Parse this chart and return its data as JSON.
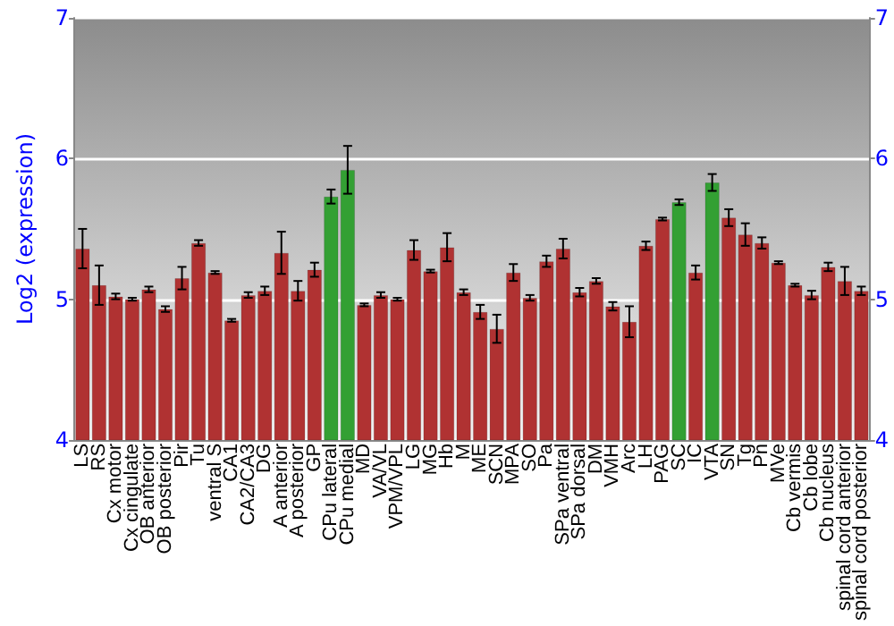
{
  "chart_data": {
    "type": "bar",
    "ylabel": "Log2 (expression)",
    "categories": [
      "LS",
      "RS",
      "Cx motor",
      "Cx cingulate",
      "OB anterior",
      "OB posterior",
      "Pir",
      "Tu",
      "ventral S",
      "CA1",
      "CA2/CA3",
      "DG",
      "A anterior",
      "A posterior",
      "GP",
      "CPu lateral",
      "CPu medial",
      "MD",
      "VA/VL",
      "VPM/VPL",
      "LG",
      "MG",
      "Hb",
      "M",
      "ME",
      "SCN",
      "MPA",
      "SO",
      "Pa",
      "SPa ventral",
      "SPa dorsal",
      "DM",
      "VMH",
      "Arc",
      "LH",
      "PAG",
      "SC",
      "IC",
      "VTA",
      "SN",
      "Tg",
      "Pn",
      "MVe",
      "Cb vermis",
      "Cb lobe",
      "Cb nucleus",
      "spinal cord anterior",
      "spinal cord posterior"
    ],
    "values": [
      5.36,
      5.1,
      5.02,
      5.0,
      5.07,
      4.93,
      5.15,
      5.4,
      5.19,
      4.85,
      5.03,
      5.06,
      5.33,
      5.06,
      5.21,
      5.73,
      5.92,
      4.96,
      5.03,
      5.0,
      5.35,
      5.2,
      5.37,
      5.05,
      4.91,
      4.79,
      5.19,
      5.01,
      5.27,
      5.36,
      5.05,
      5.13,
      4.95,
      4.84,
      5.38,
      5.57,
      5.69,
      5.19,
      5.83,
      5.58,
      5.46,
      5.4,
      5.26,
      5.1,
      5.03,
      5.23,
      5.13,
      5.06
    ],
    "errors": [
      0.14,
      0.14,
      0.02,
      0.01,
      0.02,
      0.02,
      0.08,
      0.02,
      0.01,
      0.01,
      0.02,
      0.03,
      0.15,
      0.07,
      0.05,
      0.05,
      0.17,
      0.01,
      0.02,
      0.01,
      0.07,
      0.01,
      0.1,
      0.02,
      0.05,
      0.1,
      0.06,
      0.02,
      0.04,
      0.07,
      0.03,
      0.02,
      0.03,
      0.11,
      0.03,
      0.01,
      0.02,
      0.05,
      0.06,
      0.06,
      0.08,
      0.04,
      0.01,
      0.01,
      0.03,
      0.03,
      0.1,
      0.03
    ],
    "colors": [
      "#b03232",
      "#b03232",
      "#b03232",
      "#b03232",
      "#b03232",
      "#b03232",
      "#b03232",
      "#b03232",
      "#b03232",
      "#b03232",
      "#b03232",
      "#b03232",
      "#b03232",
      "#b03232",
      "#b03232",
      "#33a033",
      "#33a033",
      "#b03232",
      "#b03232",
      "#b03232",
      "#b03232",
      "#b03232",
      "#b03232",
      "#b03232",
      "#b03232",
      "#b03232",
      "#b03232",
      "#b03232",
      "#b03232",
      "#b03232",
      "#b03232",
      "#b03232",
      "#b03232",
      "#b03232",
      "#b03232",
      "#b03232",
      "#33a033",
      "#b03232",
      "#33a033",
      "#b03232",
      "#b03232",
      "#b03232",
      "#b03232",
      "#b03232",
      "#b03232",
      "#b03232",
      "#b03232",
      "#b03232"
    ],
    "ylim": [
      4,
      7
    ],
    "yticks": [
      4,
      5,
      6,
      7
    ],
    "y2lim": [
      4,
      7
    ],
    "y2ticks": [
      4,
      5,
      6,
      7
    ],
    "grid": "y"
  }
}
